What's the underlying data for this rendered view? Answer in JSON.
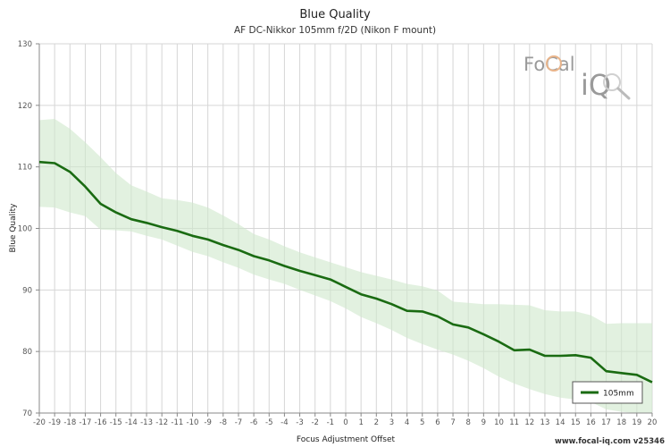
{
  "chart_data": {
    "type": "line",
    "title": "Blue Quality",
    "subtitle": "AF DC-Nikkor 105mm f/2D (Nikon F mount)",
    "xlabel": "Focus Adjustment Offset",
    "ylabel": "Blue Quality",
    "xlim": [
      -20,
      20
    ],
    "ylim": [
      70,
      130
    ],
    "x_ticks": [
      -20,
      -19,
      -18,
      -17,
      -16,
      -15,
      -14,
      -13,
      -12,
      -11,
      -10,
      -9,
      -8,
      -7,
      -6,
      -5,
      -4,
      -3,
      -2,
      -1,
      0,
      1,
      2,
      3,
      4,
      5,
      6,
      7,
      8,
      9,
      10,
      11,
      12,
      13,
      14,
      15,
      16,
      17,
      18,
      19,
      20
    ],
    "y_ticks": [
      70,
      80,
      90,
      100,
      110,
      120,
      130
    ],
    "grid": true,
    "legend_position": "bottom-right",
    "series": [
      {
        "name": "105mm",
        "color": "#1a6b12",
        "x": [
          -20,
          -19,
          -18,
          -17,
          -16,
          -15,
          -14,
          -13,
          -12,
          -11,
          -10,
          -9,
          -8,
          -7,
          -6,
          -5,
          -4,
          -3,
          -2,
          -1,
          0,
          1,
          2,
          3,
          4,
          5,
          6,
          7,
          8,
          9,
          10,
          11,
          12,
          13,
          14,
          15,
          16,
          17,
          18,
          19,
          20
        ],
        "y": [
          110.8,
          110.6,
          109.2,
          106.8,
          104.0,
          102.6,
          101.5,
          100.9,
          100.2,
          99.6,
          98.8,
          98.2,
          97.3,
          96.5,
          95.5,
          94.8,
          93.9,
          93.1,
          92.4,
          91.7,
          90.5,
          89.3,
          88.6,
          87.7,
          86.6,
          86.5,
          85.7,
          84.4,
          83.9,
          82.8,
          81.6,
          80.2,
          80.3,
          79.3,
          79.3,
          79.4,
          79.0,
          76.8,
          76.5,
          76.2,
          75.0
        ],
        "band_upper": [
          117.6,
          117.8,
          116.2,
          114.0,
          111.6,
          109.0,
          107.0,
          106.0,
          104.9,
          104.6,
          104.2,
          103.4,
          102.1,
          100.7,
          99.1,
          98.2,
          97.1,
          96.1,
          95.3,
          94.5,
          93.7,
          92.9,
          92.3,
          91.7,
          91.0,
          90.6,
          89.9,
          88.1,
          87.9,
          87.7,
          87.7,
          87.6,
          87.5,
          86.7,
          86.5,
          86.5,
          85.9,
          84.5,
          84.6,
          84.6,
          84.6
        ],
        "band_lower": [
          103.5,
          103.4,
          102.6,
          102.0,
          99.8,
          99.7,
          99.5,
          98.8,
          98.2,
          97.2,
          96.2,
          95.5,
          94.5,
          93.6,
          92.5,
          91.7,
          91.0,
          90.0,
          89.1,
          88.2,
          87.0,
          85.6,
          84.6,
          83.5,
          82.2,
          81.2,
          80.3,
          79.5,
          78.5,
          77.3,
          75.9,
          74.8,
          73.9,
          73.1,
          72.5,
          72.2,
          71.8,
          70.6,
          70.2,
          70.0,
          70.0
        ]
      }
    ],
    "legend": [
      "105mm"
    ]
  },
  "logo": {
    "text_top": "FoCal",
    "text_bottom": "iQ"
  },
  "footer": "www.focal-iq.com  v25346",
  "colors": {
    "line": "#1a6b12",
    "band": "#cfe7cc",
    "grid": "#d6d6d6",
    "axis": "#888888"
  }
}
